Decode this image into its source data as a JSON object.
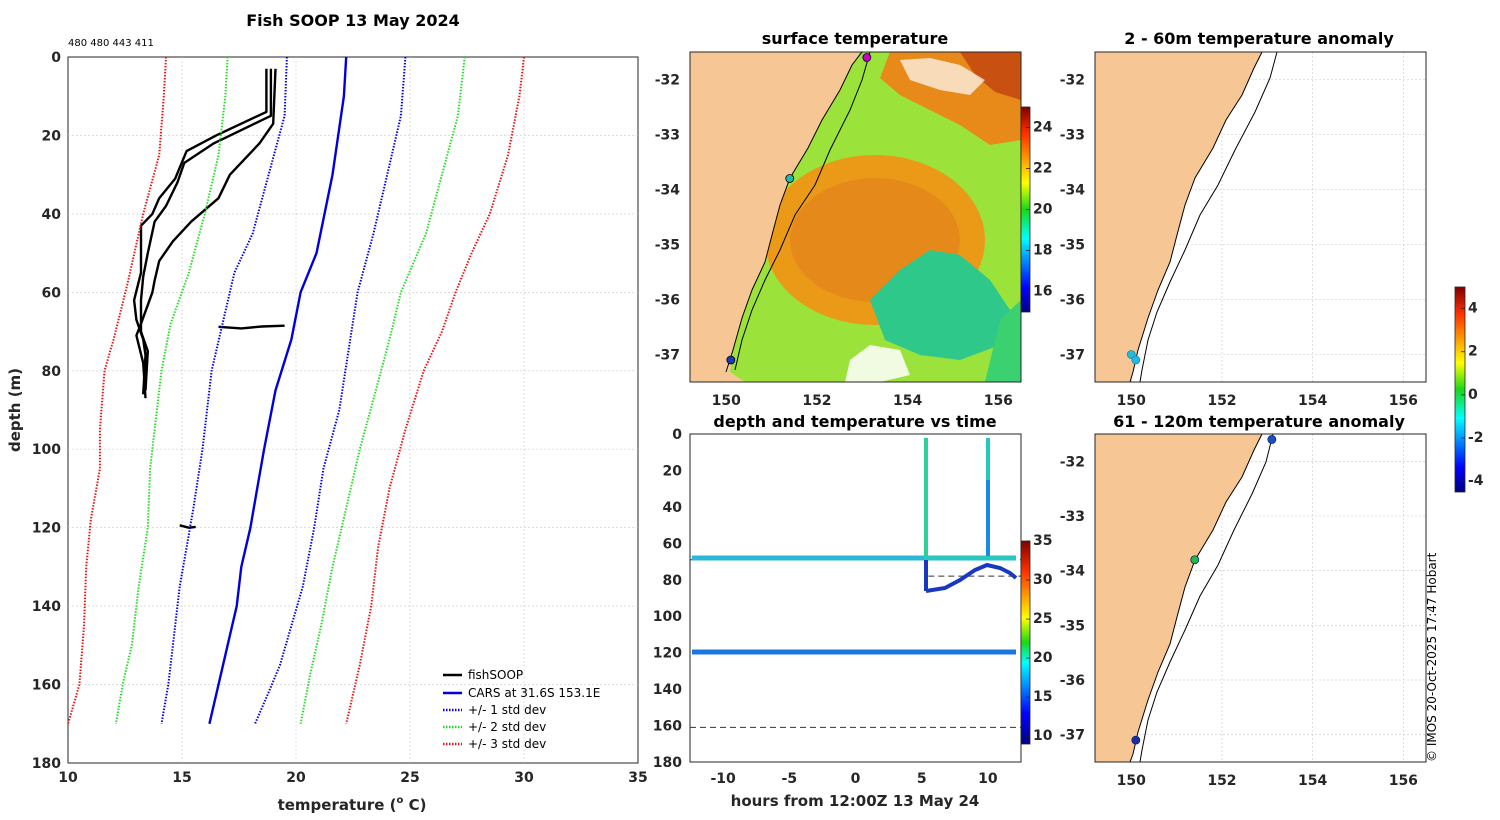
{
  "figure": {
    "title": "Fish SOOP 13 May 2024",
    "ids_text": "480 480 443 411",
    "credit": "© IMOS 20-Oct-2025 17:47 Hobart"
  },
  "colors": {
    "land": "#f7c695",
    "fishsoop": "#000000",
    "cars": "#0000dd",
    "std1": "#0000ee",
    "std2": "#22dd22",
    "std3": "#ee1111"
  },
  "chart_data": [
    {
      "type": "line",
      "panel": "profile",
      "title": "Fish SOOP 13 May 2024",
      "xlabel": "temperature (",
      "xlabel_sup": "o",
      "xlabel_tail": " C)",
      "ylabel": "depth (m)",
      "xlim": [
        10,
        35
      ],
      "ylim": [
        180,
        0
      ],
      "xticks": [
        10,
        15,
        20,
        25,
        30,
        35
      ],
      "yticks": [
        0,
        20,
        40,
        60,
        80,
        100,
        120,
        140,
        160,
        180
      ],
      "legend": [
        "fishSOOP",
        "CARS at 31.6S 153.1E",
        "+/- 1 std dev",
        "+/- 2 std dev",
        "+/- 3 std dev"
      ],
      "legend_position": "bottom-right",
      "series": [
        {
          "name": "fishSOOP",
          "style": "solid",
          "color": "#000000",
          "points": [
            [
              18.7,
              3
            ],
            [
              18.7,
              14
            ],
            [
              16.5,
              20
            ],
            [
              15.2,
              24
            ],
            [
              14.7,
              31
            ],
            [
              14.0,
              36
            ],
            [
              13.7,
              40
            ],
            [
              13.2,
              43
            ],
            [
              13.2,
              55
            ],
            [
              12.9,
              62
            ],
            [
              13.0,
              67
            ],
            [
              13.3,
              72
            ],
            [
              13.4,
              76
            ],
            [
              13.3,
              86
            ]
          ]
        },
        {
          "name": "fishSOOP",
          "style": "solid",
          "color": "#000000",
          "points": [
            [
              18.9,
              3
            ],
            [
              18.9,
              15
            ],
            [
              16.4,
              22
            ],
            [
              15.1,
              27
            ],
            [
              14.8,
              32
            ],
            [
              14.3,
              38
            ],
            [
              13.8,
              42
            ],
            [
              13.5,
              50
            ],
            [
              13.3,
              56
            ],
            [
              13.2,
              62
            ],
            [
              13.2,
              70
            ],
            [
              13.5,
              75
            ],
            [
              13.4,
              85
            ]
          ]
        },
        {
          "name": "fishSOOP",
          "style": "solid",
          "color": "#000000",
          "points": [
            [
              19.1,
              3
            ],
            [
              19.0,
              17
            ],
            [
              18.4,
              22
            ],
            [
              17.1,
              30
            ],
            [
              16.6,
              36
            ],
            [
              15.4,
              42
            ],
            [
              14.6,
              47
            ],
            [
              14.0,
              52
            ],
            [
              13.8,
              57
            ],
            [
              13.7,
              60
            ],
            [
              13.2,
              68
            ],
            [
              13.0,
              71
            ],
            [
              13.3,
              78
            ],
            [
              13.4,
              87
            ]
          ]
        },
        {
          "name": "fishSOOP",
          "style": "solid",
          "color": "#000000",
          "points": [
            [
              16.6,
              68.8
            ],
            [
              17.6,
              69.2
            ],
            [
              18.5,
              68.7
            ],
            [
              19.5,
              68.5
            ]
          ]
        },
        {
          "name": "fishSOOP",
          "style": "solid",
          "color": "#000000",
          "points": [
            [
              14.9,
              119.4
            ],
            [
              15.3,
              120
            ],
            [
              15.6,
              119.8
            ]
          ]
        },
        {
          "name": "CARS at 31.6S 153.1E",
          "style": "solid",
          "color": "#0000dd",
          "points": [
            [
              22.2,
              0
            ],
            [
              22.1,
              10
            ],
            [
              21.6,
              30
            ],
            [
              20.9,
              50
            ],
            [
              20.2,
              60
            ],
            [
              19.8,
              72
            ],
            [
              19.1,
              85
            ],
            [
              18.6,
              100
            ],
            [
              18.3,
              110
            ],
            [
              18.0,
              120
            ],
            [
              17.6,
              130
            ],
            [
              17.4,
              140
            ],
            [
              17.0,
              150
            ],
            [
              16.6,
              160
            ],
            [
              16.2,
              170
            ]
          ]
        },
        {
          "name": "+/- 1 std dev",
          "style": "dotted",
          "color": "#0000ee",
          "points": [
            [
              19.6,
              0
            ],
            [
              19.5,
              15
            ],
            [
              18.8,
              30
            ],
            [
              18.1,
              45
            ],
            [
              17.3,
              55
            ],
            [
              16.9,
              65
            ],
            [
              16.3,
              80
            ],
            [
              15.9,
              100
            ],
            [
              15.5,
              115
            ],
            [
              15.2,
              125
            ],
            [
              14.9,
              135
            ],
            [
              14.6,
              150
            ],
            [
              14.4,
              160
            ],
            [
              14.1,
              170
            ]
          ]
        },
        {
          "name": "+/- 1 std dev",
          "style": "dotted",
          "color": "#0000ee",
          "points": [
            [
              24.8,
              0
            ],
            [
              24.6,
              15
            ],
            [
              24.0,
              30
            ],
            [
              23.4,
              45
            ],
            [
              22.7,
              60
            ],
            [
              22.3,
              75
            ],
            [
              21.9,
              90
            ],
            [
              21.2,
              105
            ],
            [
              20.8,
              120
            ],
            [
              20.3,
              135
            ],
            [
              19.8,
              145
            ],
            [
              19.3,
              155
            ],
            [
              18.8,
              162
            ],
            [
              18.2,
              170
            ]
          ]
        },
        {
          "name": "+/- 2 std dev",
          "style": "dotted",
          "color": "#22dd22",
          "points": [
            [
              17.0,
              0
            ],
            [
              16.9,
              10
            ],
            [
              16.6,
              25
            ],
            [
              16.0,
              40
            ],
            [
              15.3,
              55
            ],
            [
              14.5,
              68
            ],
            [
              14.1,
              80
            ],
            [
              13.8,
              95
            ],
            [
              13.6,
              105
            ],
            [
              13.5,
              120
            ],
            [
              13.1,
              135
            ],
            [
              12.8,
              150
            ],
            [
              12.4,
              160
            ],
            [
              12.1,
              170
            ]
          ]
        },
        {
          "name": "+/- 2 std dev",
          "style": "dotted",
          "color": "#22dd22",
          "points": [
            [
              27.4,
              0
            ],
            [
              27.1,
              15
            ],
            [
              26.4,
              30
            ],
            [
              25.7,
              45
            ],
            [
              24.6,
              60
            ],
            [
              24.1,
              72
            ],
            [
              23.5,
              85
            ],
            [
              22.8,
              100
            ],
            [
              22.2,
              115
            ],
            [
              21.6,
              130
            ],
            [
              21.1,
              145
            ],
            [
              20.6,
              158
            ],
            [
              20.2,
              170
            ]
          ]
        },
        {
          "name": "+/- 3 std dev",
          "style": "dotted",
          "color": "#ee1111",
          "points": [
            [
              14.3,
              0
            ],
            [
              14.2,
              10
            ],
            [
              14.0,
              25
            ],
            [
              13.3,
              40
            ],
            [
              12.6,
              58
            ],
            [
              12.0,
              72
            ],
            [
              11.6,
              80
            ],
            [
              11.4,
              95
            ],
            [
              11.4,
              105
            ],
            [
              11.0,
              118
            ],
            [
              10.8,
              130
            ],
            [
              10.7,
              145
            ],
            [
              10.5,
              160
            ],
            [
              10.0,
              170
            ]
          ]
        },
        {
          "name": "+/- 3 std dev",
          "style": "dotted",
          "color": "#ee1111",
          "points": [
            [
              30.0,
              0
            ],
            [
              29.8,
              10
            ],
            [
              29.3,
              25
            ],
            [
              28.5,
              40
            ],
            [
              27.7,
              50
            ],
            [
              27.0,
              60
            ],
            [
              26.4,
              70
            ],
            [
              25.6,
              80
            ],
            [
              24.8,
              95
            ],
            [
              24.1,
              110
            ],
            [
              23.6,
              125
            ],
            [
              23.3,
              140
            ],
            [
              22.8,
              155
            ],
            [
              22.2,
              170
            ]
          ]
        }
      ]
    },
    {
      "type": "map",
      "panel": "surface",
      "title": "surface temperature",
      "xticks": [
        150,
        152,
        154,
        156
      ],
      "yticks": [
        -32,
        -33,
        -34,
        -35,
        -36,
        -37
      ],
      "colorbar": {
        "ticks": [
          16,
          18,
          20,
          22,
          24
        ],
        "range": [
          15,
          25
        ]
      },
      "markers": [
        {
          "lon": 153.1,
          "lat": -31.6,
          "color": "#cc00cc"
        },
        {
          "lon": 151.4,
          "lat": -33.8,
          "color": "#22bbaa"
        },
        {
          "lon": 150.1,
          "lat": -37.1,
          "color": "#1a3ab8"
        }
      ]
    },
    {
      "type": "scatter",
      "panel": "timeseries",
      "title": "depth and temperature vs time",
      "xlabel": "hours from 12:00Z 13 May 24",
      "xlim": [
        -12.5,
        12.5
      ],
      "ylim": [
        180,
        0
      ],
      "xticks": [
        -10,
        -5,
        0,
        5,
        10
      ],
      "yticks": [
        0,
        20,
        40,
        60,
        80,
        100,
        120,
        140,
        160,
        180
      ],
      "colorbar": {
        "ticks": [
          10,
          15,
          20,
          25,
          30,
          35
        ],
        "range": [
          9,
          35
        ]
      },
      "dashed_lines": [
        {
          "x0": -12.5,
          "x1": 12.5,
          "depth": 69
        },
        {
          "x0": 5.5,
          "x1": 12.5,
          "depth": 78
        },
        {
          "x0": -12.5,
          "x1": 12.5,
          "depth": 161
        }
      ]
    },
    {
      "type": "map",
      "panel": "anomaly_shallow",
      "title": "2 - 60m temperature anomaly",
      "xticks": [
        150,
        152,
        154,
        156
      ],
      "yticks": [
        -32,
        -33,
        -34,
        -35,
        -36,
        -37
      ],
      "markers": [
        {
          "lon": 150.0,
          "lat": -37.0,
          "color": "#22bbdd"
        },
        {
          "lon": 150.1,
          "lat": -37.1,
          "color": "#22bbdd"
        }
      ]
    },
    {
      "type": "map",
      "panel": "anomaly_deep",
      "title": "61 - 120m temperature anomaly",
      "xticks": [
        150,
        152,
        154,
        156
      ],
      "yticks": [
        -32,
        -33,
        -34,
        -35,
        -36,
        -37
      ],
      "markers": [
        {
          "lon": 153.1,
          "lat": -31.6,
          "color": "#1a4fc8"
        },
        {
          "lon": 151.4,
          "lat": -33.8,
          "color": "#22bb44"
        },
        {
          "lon": 150.1,
          "lat": -37.1,
          "color": "#1a2e9e"
        }
      ]
    },
    {
      "type": "colorbar",
      "panel": "anomaly_colorbar",
      "ticks": [
        4,
        2,
        0,
        -2,
        -4
      ],
      "range": [
        -4.5,
        5
      ]
    }
  ]
}
